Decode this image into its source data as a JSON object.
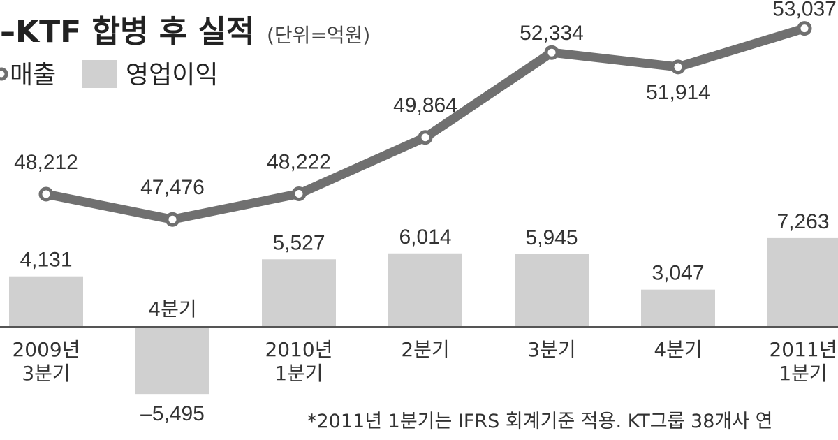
{
  "chart_data": {
    "type": "bar",
    "title": "–KTF 합병 후 실적",
    "unit": "(단위=억원)",
    "categories": [
      [
        "2009년",
        "3분기"
      ],
      [
        "4분기"
      ],
      [
        "2010년",
        "1분기"
      ],
      [
        "2분기"
      ],
      [
        "3분기"
      ],
      [
        "4분기"
      ],
      [
        "2011년",
        "1분기"
      ]
    ],
    "series": [
      {
        "name": "매출",
        "type": "line",
        "values": [
          48212,
          47476,
          48222,
          49864,
          52334,
          51914,
          53037
        ],
        "labels": [
          "48,212",
          "47,476",
          "48,222",
          "49,864",
          "52,334",
          "51,914",
          "53,037"
        ],
        "color": "#707070"
      },
      {
        "name": "영업이익",
        "type": "bar",
        "values": [
          4131,
          -5495,
          5527,
          6014,
          5945,
          3047,
          7263
        ],
        "labels": [
          "4,131",
          "–5,495",
          "5,527",
          "6,014",
          "5,945",
          "3,047",
          "7,263"
        ],
        "color": "#d0d0d0"
      }
    ],
    "footnote": "*2011년 1분기는 IFRS 회계기준 적용. KT그룹 38개사 연"
  }
}
